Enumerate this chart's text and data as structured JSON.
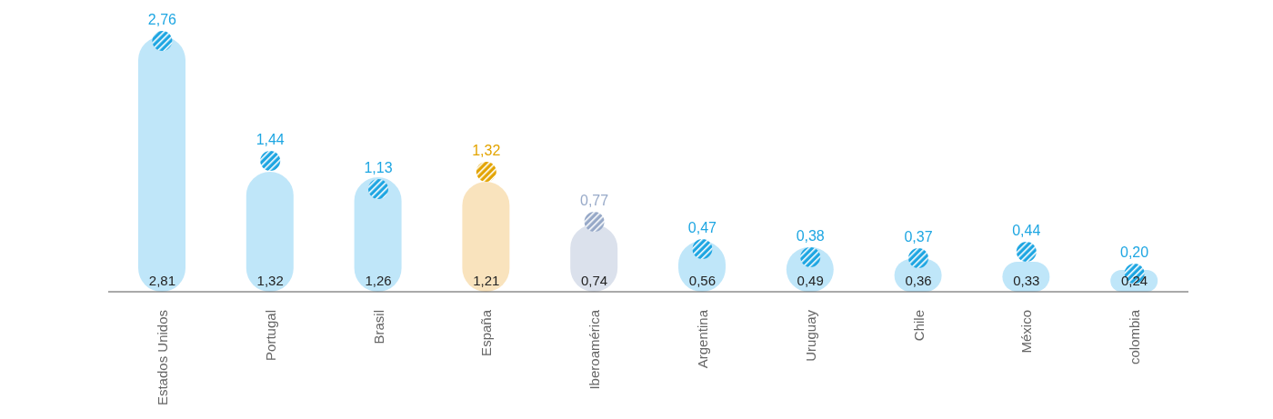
{
  "chart_data": {
    "type": "bar",
    "categories": [
      "Estados Unidos",
      "Portugal",
      "Brasil",
      "España",
      "Iberoamérica",
      "Argentina",
      "Uruguay",
      "Chile",
      "México",
      "colombia"
    ],
    "series": [
      {
        "values": [
          2.81,
          1.32,
          1.26,
          1.21,
          0.74,
          0.56,
          0.49,
          0.36,
          0.33,
          0.24
        ],
        "colors": [
          "#bfe6f9",
          "#bfe6f9",
          "#bfe6f9",
          "#f9e3bd",
          "#dbe1ec",
          "#bfe6f9",
          "#bfe6f9",
          "#bfe6f9",
          "#bfe6f9",
          "#bfe6f9"
        ],
        "value_labels": [
          "2,81",
          "1,32",
          "1,26",
          "1,21",
          "0,74",
          "0,56",
          "0,49",
          "0,36",
          "0,33",
          "0,24"
        ]
      },
      {
        "type": "scatter",
        "marker": "circle",
        "values": [
          2.76,
          1.44,
          1.13,
          1.32,
          0.77,
          0.47,
          0.38,
          0.37,
          0.44,
          0.2
        ],
        "colors": [
          "#1ea6e2",
          "#1ea6e2",
          "#1ea6e2",
          "#e3a400",
          "#97a9c8",
          "#1ea6e2",
          "#1ea6e2",
          "#1ea6e2",
          "#1ea6e2",
          "#1ea6e2"
        ],
        "value_labels": [
          "2,76",
          "1,44",
          "1,13",
          "1,32",
          "0,77",
          "0,47",
          "0,38",
          "0,37",
          "0,44",
          "0,20"
        ]
      }
    ],
    "grid": false,
    "legend": false
  }
}
